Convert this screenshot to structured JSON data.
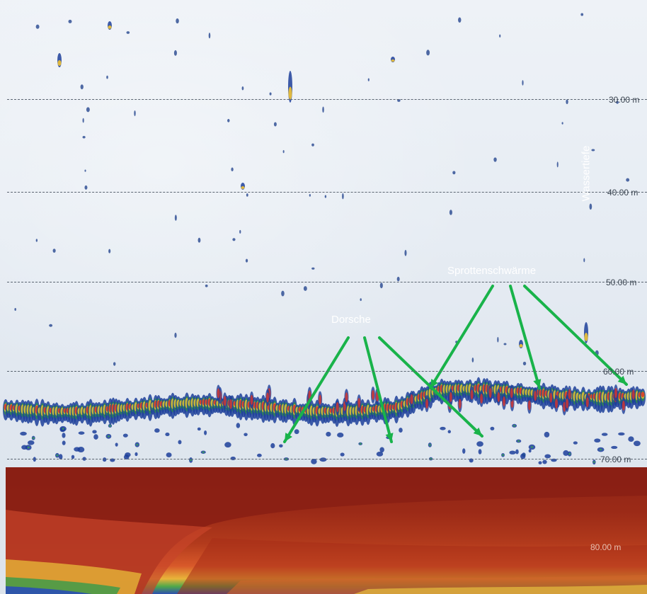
{
  "sonar": {
    "depth_axis_title": "Wassertiefe",
    "depth_marks": [
      {
        "label": "30.00 m",
        "depth": 30
      },
      {
        "label": "40.00 m",
        "depth": 40
      },
      {
        "label": "50.00 m",
        "depth": 50
      },
      {
        "label": "60.00 m",
        "depth": 60
      },
      {
        "label": "70.00 m",
        "depth": 70
      },
      {
        "label": "80.00 m",
        "depth": 80
      }
    ],
    "annotations": {
      "cod_label": "Dorsche",
      "sprat_label": "Sprottenschwärme",
      "arrow_color": "#19b34a"
    },
    "colors": {
      "water_background": "#e6ecf3",
      "seabed": "#8a1f14",
      "echo_strong": "#d9342b",
      "echo_medium": "#f1c232",
      "echo_weak": "#1d3f9a"
    }
  }
}
